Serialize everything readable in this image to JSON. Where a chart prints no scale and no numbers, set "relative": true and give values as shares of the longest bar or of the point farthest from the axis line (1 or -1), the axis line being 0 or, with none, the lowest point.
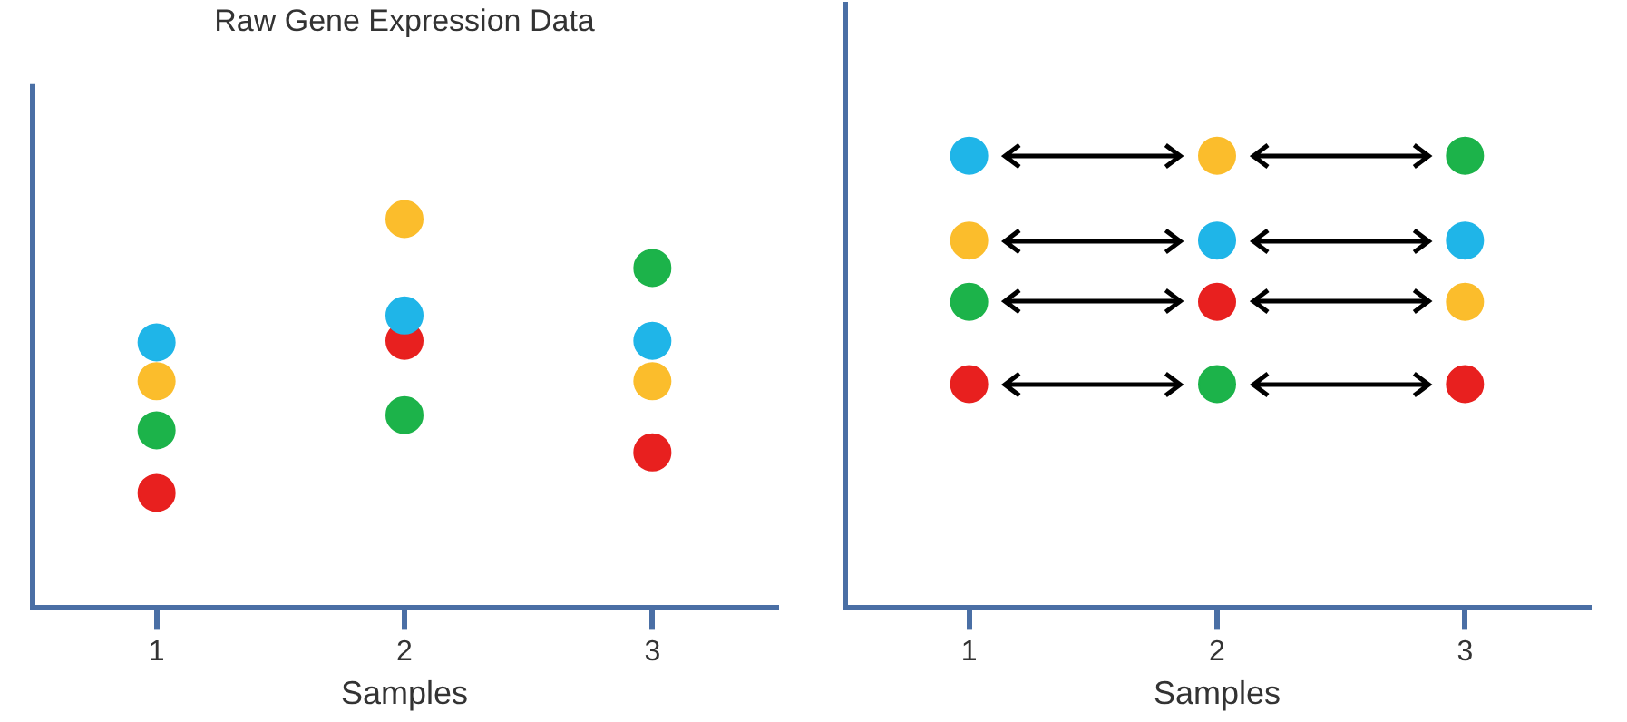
{
  "chart_data": [
    {
      "type": "scatter",
      "title": "Raw Gene Expression Data",
      "xlabel": "Samples",
      "categories": [
        "1",
        "2",
        "3"
      ],
      "relative": true,
      "tick_labels": "x",
      "marker": "circle",
      "legend": false,
      "grid": false,
      "series": [
        {
          "color": "#1fb5e8",
          "values": [
            0.683,
            0.752,
            0.687
          ]
        },
        {
          "color": "#fbbd2c",
          "values": [
            0.583,
            1.0,
            0.583
          ]
        },
        {
          "color": "#1cb34a",
          "values": [
            0.457,
            0.496,
            0.874
          ]
        },
        {
          "color": "#e8201f",
          "values": [
            0.296,
            0.687,
            0.4
          ]
        }
      ]
    },
    {
      "type": "scatter",
      "xlabel": "Samples",
      "categories": [
        "1",
        "2",
        "3"
      ],
      "relative": true,
      "tick_labels": "x",
      "marker": "circle",
      "legend": false,
      "grid": false,
      "series": [
        {
          "color": "#1fb5e8",
          "values": [
            1.0,
            0.8125,
            0.8125
          ]
        },
        {
          "color": "#fbbd2c",
          "values": [
            0.8125,
            1.0,
            0.677
          ]
        },
        {
          "color": "#1cb34a",
          "values": [
            0.677,
            0.495,
            1.0
          ]
        },
        {
          "color": "#e8201f",
          "values": [
            0.495,
            0.677,
            0.495
          ]
        }
      ]
    }
  ]
}
